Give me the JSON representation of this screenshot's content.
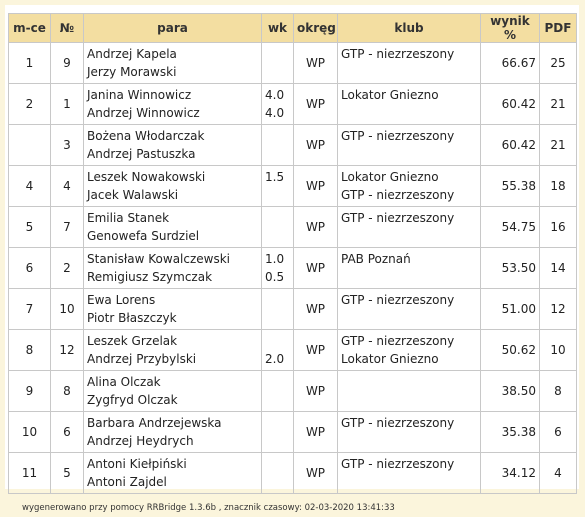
{
  "table": {
    "headers": {
      "place": "m-ce",
      "number": "№",
      "pair": "para",
      "wk": "wk",
      "region": "okręg",
      "club": "klub",
      "score": "wynik %",
      "pdf": "PDF"
    },
    "rows": [
      {
        "place": "1",
        "number": "9",
        "player1": "Andrzej Kapela",
        "player2": "Jerzy Morawski",
        "wk1": "",
        "wk2": "",
        "region": "WP",
        "club1": "GTP - niezrzeszony",
        "club2": "",
        "score": "66.67",
        "pdf": "25"
      },
      {
        "place": "2",
        "number": "1",
        "player1": "Janina Winnowicz",
        "player2": "Andrzej Winnowicz",
        "wk1": "4.0",
        "wk2": "4.0",
        "region": "WP",
        "club1": "Lokator Gniezno",
        "club2": "",
        "score": "60.42",
        "pdf": "21"
      },
      {
        "place": "",
        "number": "3",
        "player1": "Bożena Włodarczak",
        "player2": "Andrzej Pastuszka",
        "wk1": "",
        "wk2": "",
        "region": "WP",
        "club1": "GTP - niezrzeszony",
        "club2": "",
        "score": "60.42",
        "pdf": "21"
      },
      {
        "place": "4",
        "number": "4",
        "player1": "Leszek Nowakowski",
        "player2": "Jacek Walawski",
        "wk1": "1.5",
        "wk2": "",
        "region": "WP",
        "club1": "Lokator Gniezno",
        "club2": "GTP - niezrzeszony",
        "score": "55.38",
        "pdf": "18"
      },
      {
        "place": "5",
        "number": "7",
        "player1": "Emilia Stanek",
        "player2": "Genowefa Surdziel",
        "wk1": "",
        "wk2": "",
        "region": "WP",
        "club1": "GTP - niezrzeszony",
        "club2": "",
        "score": "54.75",
        "pdf": "16"
      },
      {
        "place": "6",
        "number": "2",
        "player1": "Stanisław Kowalczewski",
        "player2": "Remigiusz Szymczak",
        "wk1": "1.0",
        "wk2": "0.5",
        "region": "WP",
        "club1": "PAB Poznań",
        "club2": "",
        "score": "53.50",
        "pdf": "14"
      },
      {
        "place": "7",
        "number": "10",
        "player1": "Ewa Lorens",
        "player2": "Piotr Błaszczyk",
        "wk1": "",
        "wk2": "",
        "region": "WP",
        "club1": "GTP - niezrzeszony",
        "club2": "",
        "score": "51.00",
        "pdf": "12"
      },
      {
        "place": "8",
        "number": "12",
        "player1": "Leszek Grzelak",
        "player2": "Andrzej Przybylski",
        "wk1": "",
        "wk2": "2.0",
        "region": "WP",
        "club1": "GTP - niezrzeszony",
        "club2": "Lokator Gniezno",
        "score": "50.62",
        "pdf": "10"
      },
      {
        "place": "9",
        "number": "8",
        "player1": "Alina Olczak",
        "player2": "Zygfryd Olczak",
        "wk1": "",
        "wk2": "",
        "region": "WP",
        "club1": "",
        "club2": "",
        "score": "38.50",
        "pdf": "8"
      },
      {
        "place": "10",
        "number": "6",
        "player1": "Barbara Andrzejewska",
        "player2": "Andrzej Heydrych",
        "wk1": "",
        "wk2": "",
        "region": "WP",
        "club1": "GTP - niezrzeszony",
        "club2": "",
        "score": "35.38",
        "pdf": "6"
      },
      {
        "place": "11",
        "number": "5",
        "player1": "Antoni Kiełpiński",
        "player2": "Antoni Zajdel",
        "wk1": "",
        "wk2": "",
        "region": "WP",
        "club1": "GTP - niezrzeszony",
        "club2": "",
        "score": "34.12",
        "pdf": "4"
      }
    ]
  },
  "footer": {
    "text": "wygenerowano przy pomocy RRBridge 1.3.6b , znacznik czasowy: 02-03-2020 13:41:33"
  }
}
